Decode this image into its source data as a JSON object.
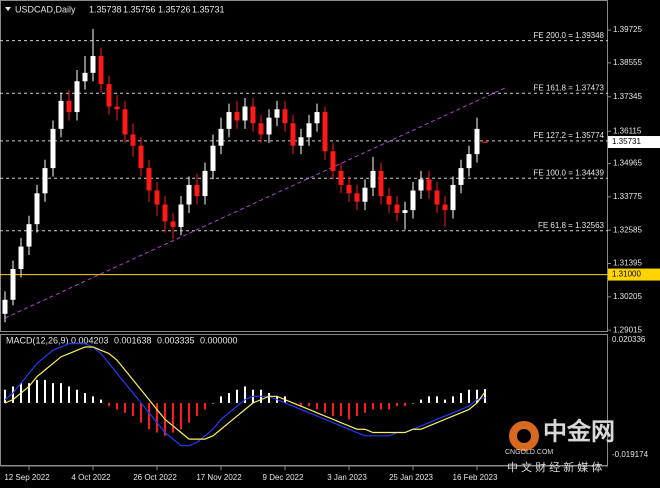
{
  "chart_data": {
    "type": "candlestick",
    "symbol": "USDCAD,Daily",
    "categories": [
      null,
      null,
      null,
      "12 Sep 2022",
      null,
      null,
      null,
      null,
      null,
      null,
      null,
      "4 Oct 2022",
      null,
      null,
      null,
      null,
      null,
      null,
      null,
      "26 Oct 2022",
      null,
      null,
      null,
      null,
      null,
      null,
      null,
      "17 Nov 2022",
      null,
      null,
      null,
      null,
      null,
      null,
      null,
      "9 Dec 2022",
      null,
      null,
      null,
      null,
      null,
      null,
      null,
      "3 Jan 2023",
      null,
      null,
      null,
      null,
      null,
      null,
      null,
      "25 Jan 2023",
      null,
      null,
      null,
      null,
      null,
      null,
      null,
      "16 Feb 2023",
      null
    ],
    "open": [
      1.296,
      1.301,
      1.312,
      1.32,
      1.328,
      1.339,
      1.348,
      1.362,
      1.372,
      1.368,
      1.379,
      1.382,
      1.388,
      1.378,
      1.37,
      1.369,
      1.36,
      1.356,
      1.348,
      1.34,
      1.335,
      1.329,
      1.327,
      1.335,
      1.342,
      1.338,
      1.347,
      1.356,
      1.362,
      1.368,
      1.365,
      1.37,
      1.364,
      1.36,
      1.366,
      1.369,
      1.364,
      1.356,
      1.359,
      1.364,
      1.368,
      1.354,
      1.347,
      1.342,
      1.339,
      1.336,
      1.341,
      1.347,
      1.338,
      1.335,
      1.332,
      1.333,
      1.34,
      1.344,
      1.34,
      1.335,
      1.333,
      1.342,
      1.348,
      1.353,
      1.35738
    ],
    "high": [
      1.304,
      1.315,
      1.323,
      1.331,
      1.342,
      1.351,
      1.365,
      1.375,
      1.376,
      1.383,
      1.388,
      1.3977,
      1.391,
      1.381,
      1.374,
      1.372,
      1.364,
      1.359,
      1.351,
      1.343,
      1.338,
      1.332,
      1.338,
      1.345,
      1.346,
      1.35,
      1.36,
      1.366,
      1.371,
      1.372,
      1.373,
      1.373,
      1.367,
      1.369,
      1.372,
      1.372,
      1.367,
      1.362,
      1.367,
      1.371,
      1.37,
      1.357,
      1.35,
      1.345,
      1.342,
      1.344,
      1.352,
      1.35,
      1.341,
      1.338,
      1.336,
      1.343,
      1.347,
      1.347,
      1.343,
      1.338,
      1.345,
      1.351,
      1.356,
      1.366,
      1.35756
    ],
    "low": [
      1.293,
      1.299,
      1.309,
      1.317,
      1.325,
      1.336,
      1.345,
      1.359,
      1.365,
      1.365,
      1.376,
      1.379,
      1.375,
      1.367,
      1.365,
      1.357,
      1.352,
      1.345,
      1.336,
      1.331,
      1.325,
      1.3226,
      1.324,
      1.332,
      1.335,
      1.335,
      1.344,
      1.353,
      1.359,
      1.362,
      1.362,
      1.361,
      1.357,
      1.357,
      1.363,
      1.361,
      1.353,
      1.353,
      1.356,
      1.361,
      1.351,
      1.344,
      1.339,
      1.336,
      1.333,
      1.333,
      1.338,
      1.335,
      1.332,
      1.329,
      1.326,
      1.33,
      1.337,
      1.337,
      1.332,
      1.327,
      1.33,
      1.339,
      1.345,
      1.35,
      1.35726
    ],
    "close": [
      1.301,
      1.312,
      1.32,
      1.328,
      1.339,
      1.348,
      1.362,
      1.372,
      1.368,
      1.379,
      1.382,
      1.388,
      1.378,
      1.37,
      1.369,
      1.36,
      1.356,
      1.348,
      1.34,
      1.335,
      1.329,
      1.327,
      1.335,
      1.342,
      1.338,
      1.347,
      1.356,
      1.362,
      1.368,
      1.365,
      1.37,
      1.364,
      1.36,
      1.366,
      1.369,
      1.364,
      1.356,
      1.359,
      1.364,
      1.368,
      1.354,
      1.347,
      1.342,
      1.339,
      1.336,
      1.341,
      1.347,
      1.338,
      1.335,
      1.332,
      1.333,
      1.34,
      1.344,
      1.34,
      1.335,
      1.333,
      1.342,
      1.348,
      1.353,
      1.362,
      1.35731
    ],
    "up_color": "#ffffff",
    "down_color": "#ff1a1a",
    "ylim": [
      1.2895,
      1.408
    ],
    "yticks": [
      1.29015,
      1.30205,
      1.31395,
      1.32585,
      1.33775,
      1.34965,
      1.36115,
      1.37345,
      1.38555,
      1.39725
    ],
    "levels": [
      {
        "value": 1.39348,
        "label": "FE 200.0 = 1.39348"
      },
      {
        "value": 1.37473,
        "label": "FE 161.8 = 1.37473"
      },
      {
        "value": 1.35774,
        "label": "FE 127.2 = 1.35774"
      },
      {
        "value": 1.34439,
        "label": "FE 100.0 = 1.34439"
      },
      {
        "value": 1.32563,
        "label": "FE 61.8 = 1.32563"
      }
    ],
    "hline": {
      "value": 1.31,
      "label": "1.31000",
      "color": "#ffd400"
    },
    "trendline": {
      "x": [
        0,
        62.5
      ],
      "y": [
        1.2945,
        1.3766
      ],
      "color": "#b040d0"
    },
    "macd": {
      "title": "MACD(12,26,9)",
      "readout": [
        "0.004203",
        "0.001638",
        "0.003335",
        "0.000000"
      ],
      "ylim": [
        -0.019174,
        0.020336
      ],
      "histogram": {
        "pos_color": "#ffffff",
        "neg_color": "#ff1a1a",
        "values": [
          0.004,
          0.005,
          0.006,
          0.006,
          0.007,
          0.007,
          0.006,
          0.006,
          0.005,
          0.004,
          0.003,
          0.002,
          0.001,
          -0.001,
          -0.002,
          -0.003,
          -0.004,
          -0.006,
          -0.008,
          -0.009,
          -0.01,
          -0.009,
          -0.008,
          -0.006,
          -0.004,
          -0.002,
          0.0,
          0.002,
          0.003,
          0.004,
          0.005,
          0.004,
          0.004,
          0.003,
          0.002,
          0.002,
          0.0,
          -0.001,
          -0.001,
          -0.002,
          -0.003,
          -0.004,
          -0.004,
          -0.005,
          -0.004,
          -0.003,
          -0.002,
          -0.002,
          -0.002,
          -0.001,
          -0.001,
          0.0,
          0.001,
          0.002,
          0.002,
          0.001,
          0.002,
          0.003,
          0.004,
          0.004,
          0.004203
        ]
      },
      "lines": [
        {
          "color": "#1e3cff",
          "values": [
            0.001,
            0.003,
            0.006,
            0.009,
            0.012,
            0.014,
            0.016,
            0.017,
            0.018,
            0.018,
            0.018,
            0.017,
            0.015,
            0.012,
            0.009,
            0.006,
            0.003,
            0.0,
            -0.003,
            -0.006,
            -0.009,
            -0.011,
            -0.013,
            -0.013,
            -0.012,
            -0.01,
            -0.008,
            -0.005,
            -0.003,
            -0.001,
            0.001,
            0.002,
            0.002,
            0.002,
            0.001,
            0.0,
            -0.001,
            -0.002,
            -0.003,
            -0.004,
            -0.005,
            -0.006,
            -0.007,
            -0.008,
            -0.009,
            -0.01,
            -0.01,
            -0.01,
            -0.01,
            -0.009,
            -0.009,
            -0.008,
            -0.007,
            -0.006,
            -0.005,
            -0.004,
            -0.003,
            -0.002,
            -0.001,
            0.001,
            0.001638
          ]
        },
        {
          "color": "#ffef5a",
          "values": [
            0.0,
            0.001,
            0.003,
            0.005,
            0.008,
            0.01,
            0.012,
            0.014,
            0.015,
            0.016,
            0.017,
            0.017,
            0.016,
            0.015,
            0.013,
            0.01,
            0.007,
            0.004,
            0.001,
            -0.002,
            -0.005,
            -0.007,
            -0.009,
            -0.011,
            -0.011,
            -0.011,
            -0.01,
            -0.008,
            -0.006,
            -0.004,
            -0.002,
            0.0,
            0.001,
            0.002,
            0.002,
            0.001,
            0.0,
            -0.001,
            -0.002,
            -0.003,
            -0.004,
            -0.005,
            -0.006,
            -0.007,
            -0.008,
            -0.008,
            -0.009,
            -0.009,
            -0.009,
            -0.009,
            -0.009,
            -0.008,
            -0.008,
            -0.007,
            -0.006,
            -0.005,
            -0.004,
            -0.003,
            -0.002,
            0.0,
            0.003335
          ]
        }
      ]
    },
    "watermark": {
      "brand": "中金网",
      "site": "CNGOLD.COM",
      "slogan": "中 文 财 经 新 媒 体"
    }
  }
}
